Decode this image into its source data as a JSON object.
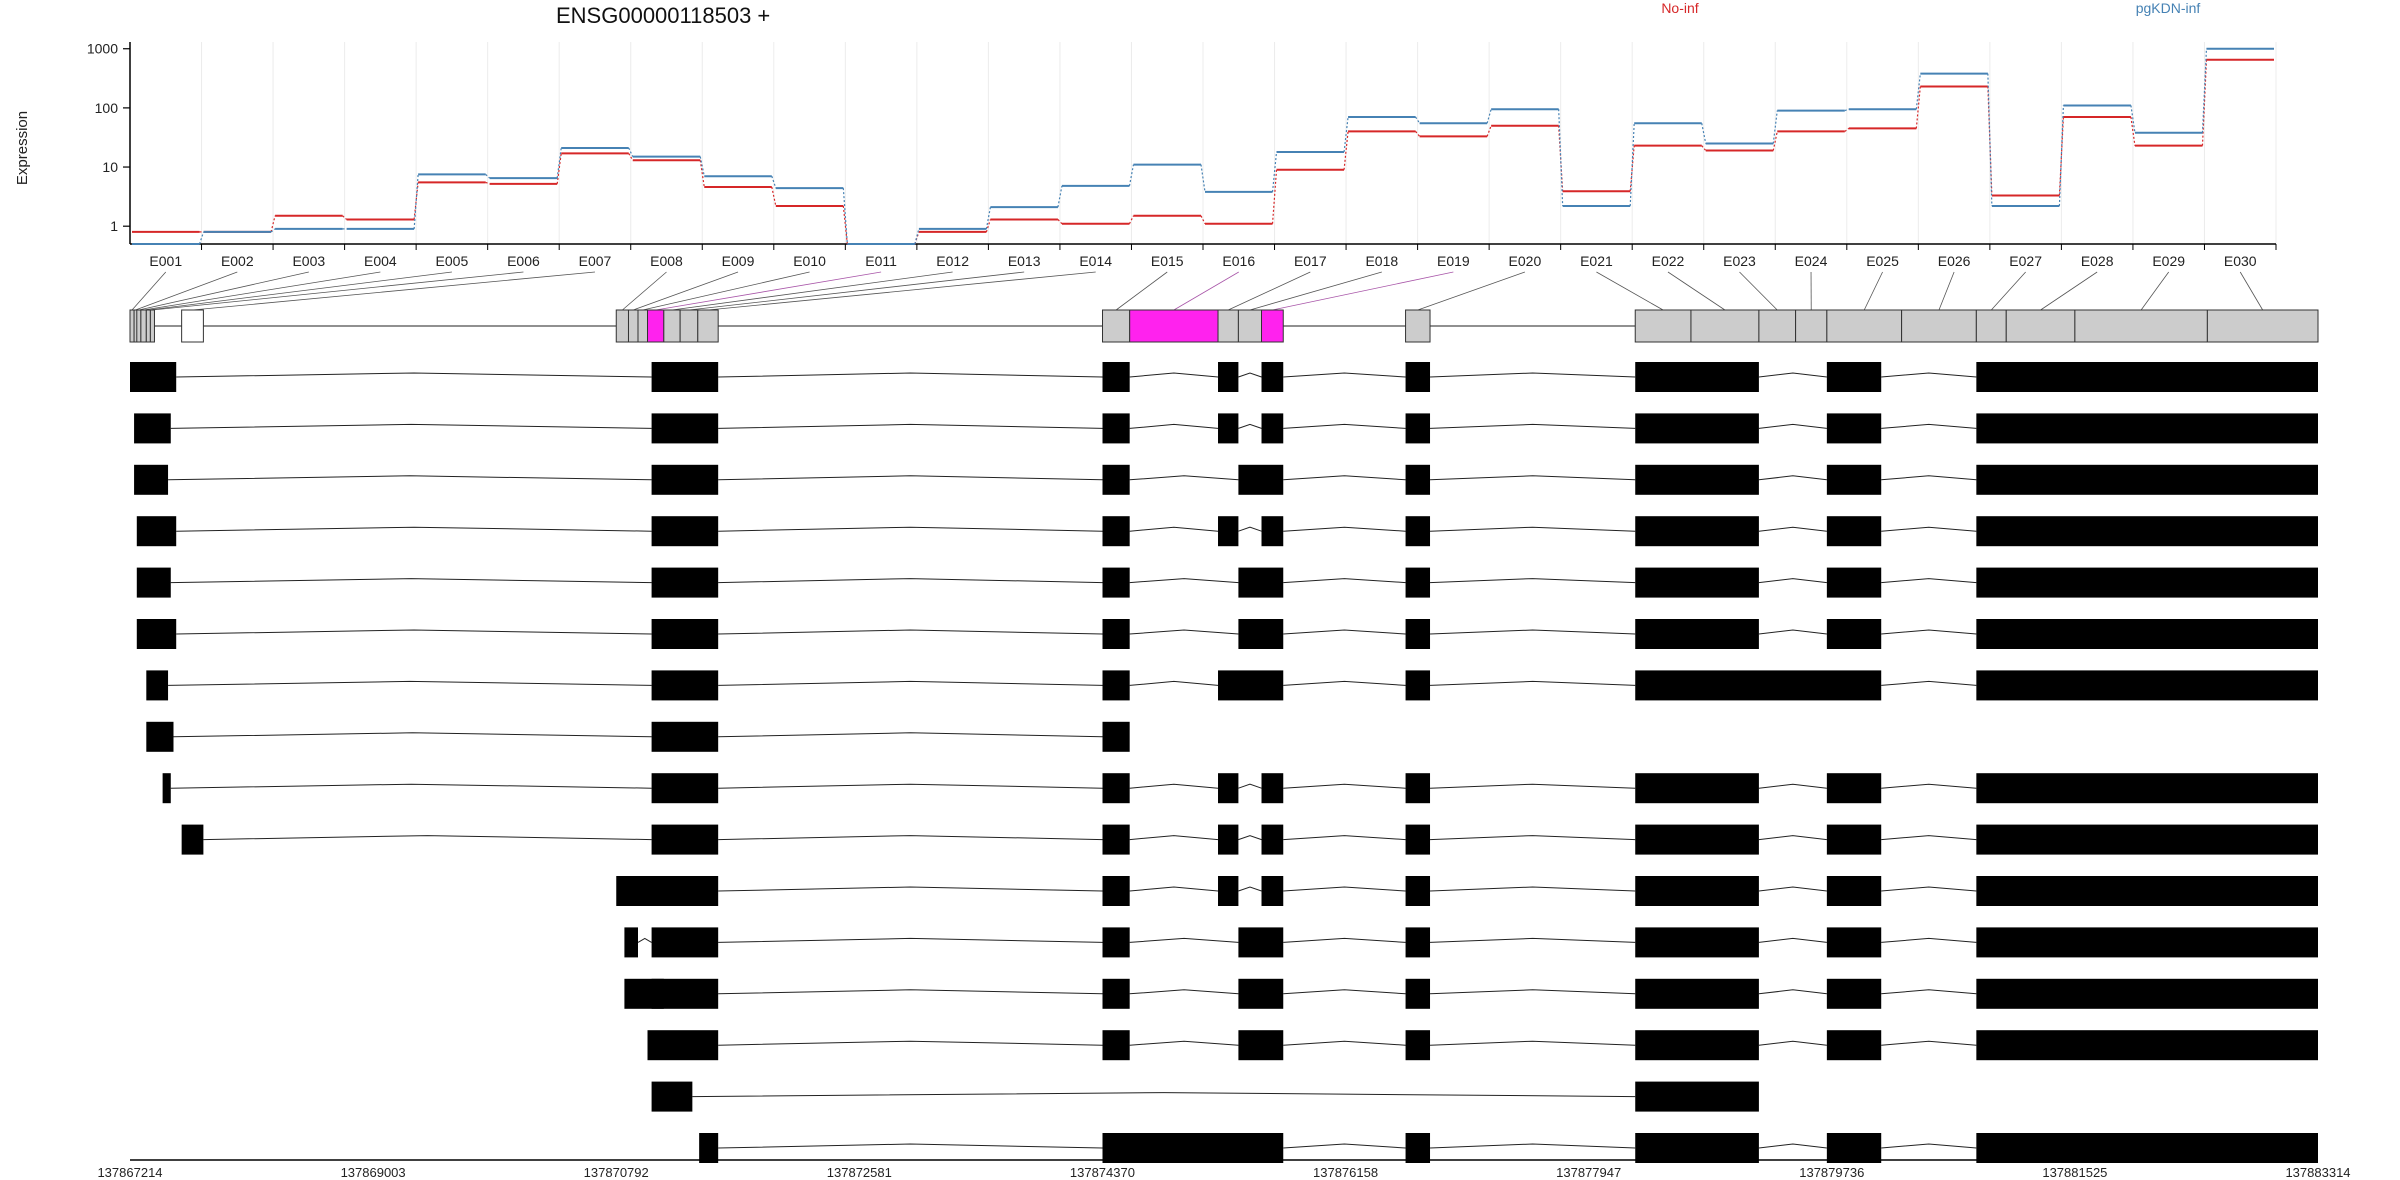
{
  "chart_data": {
    "type": "line",
    "title": "ENSG00000118503 +",
    "ylabel": "Expression",
    "y_scale": "log10",
    "ylim": [
      0.5,
      1300
    ],
    "y_ticks": [
      1,
      10,
      100,
      1000
    ],
    "y_tick_labels": [
      "1",
      "10",
      "100",
      "1000"
    ],
    "legend_position": "top",
    "grid": "vertical",
    "categories": [
      "E001",
      "E002",
      "E003",
      "E004",
      "E005",
      "E006",
      "E007",
      "E008",
      "E009",
      "E010",
      "E011",
      "E012",
      "E013",
      "E014",
      "E015",
      "E016",
      "E017",
      "E018",
      "E019",
      "E020",
      "E021",
      "E022",
      "E023",
      "E024",
      "E025",
      "E026",
      "E027",
      "E028",
      "E029",
      "E030"
    ],
    "series": [
      {
        "name": "No-inf",
        "color": "#d62728",
        "values": [
          0.8,
          0.8,
          1.5,
          1.3,
          5.5,
          5.2,
          17,
          13,
          4.6,
          2.2,
          0.5,
          0.8,
          1.3,
          1.1,
          1.5,
          1.1,
          9,
          40,
          33,
          50,
          3.9,
          23,
          19,
          40,
          45,
          230,
          3.3,
          70,
          23,
          650
        ]
      },
      {
        "name": "pgKDN-inf",
        "color": "#4682b4",
        "values": [
          0.5,
          0.8,
          0.9,
          0.9,
          7.5,
          6.5,
          21,
          15,
          7,
          4.4,
          0.5,
          0.9,
          2.1,
          4.8,
          11,
          3.8,
          18,
          70,
          55,
          95,
          2.2,
          55,
          25,
          90,
          95,
          380,
          2.2,
          110,
          38,
          1000
        ]
      }
    ],
    "gene_model": {
      "coordinate_range": [
        137867214,
        137883314
      ],
      "coordinate_ticks": [
        "137867214",
        "137869003",
        "137870792",
        "137872581",
        "137874370",
        "137876158",
        "137877947",
        "137879736",
        "137881525",
        "137883314"
      ],
      "exon_bins": [
        {
          "id": "E001",
          "start": 137867214,
          "end": 137867244,
          "fill": "#cccccc"
        },
        {
          "id": "E002",
          "start": 137867244,
          "end": 137867264,
          "fill": "#cccccc"
        },
        {
          "id": "E003",
          "start": 137867264,
          "end": 137867294,
          "fill": "#cccccc"
        },
        {
          "id": "E004",
          "start": 137867294,
          "end": 137867334,
          "fill": "#cccccc"
        },
        {
          "id": "E005",
          "start": 137867334,
          "end": 137867364,
          "fill": "#cccccc"
        },
        {
          "id": "E006",
          "start": 137867364,
          "end": 137867394,
          "fill": "#cccccc"
        },
        {
          "id": "E007",
          "start": 137867594,
          "end": 137867754,
          "fill": "#ffffff"
        },
        {
          "id": "E008",
          "start": 137870792,
          "end": 137870882,
          "fill": "#cccccc"
        },
        {
          "id": "E009",
          "start": 137870882,
          "end": 137870952,
          "fill": "#cccccc"
        },
        {
          "id": "E010",
          "start": 137870952,
          "end": 137871022,
          "fill": "#cccccc"
        },
        {
          "id": "E011",
          "start": 137871022,
          "end": 137871142,
          "fill": "#ff22ee"
        },
        {
          "id": "E012",
          "start": 137871142,
          "end": 137871262,
          "fill": "#cccccc"
        },
        {
          "id": "E013",
          "start": 137871262,
          "end": 137871392,
          "fill": "#cccccc"
        },
        {
          "id": "E014",
          "start": 137871392,
          "end": 137871542,
          "fill": "#cccccc"
        },
        {
          "id": "E015",
          "start": 137874370,
          "end": 137874570,
          "fill": "#cccccc"
        },
        {
          "id": "E016",
          "start": 137874570,
          "end": 137875220,
          "fill": "#ff22ee"
        },
        {
          "id": "E017",
          "start": 137875220,
          "end": 137875370,
          "fill": "#cccccc"
        },
        {
          "id": "E018",
          "start": 137875370,
          "end": 137875540,
          "fill": "#cccccc"
        },
        {
          "id": "E019",
          "start": 137875540,
          "end": 137875700,
          "fill": "#ff22ee"
        },
        {
          "id": "E020",
          "start": 137876600,
          "end": 137876780,
          "fill": "#cccccc"
        },
        {
          "id": "E021",
          "start": 137878290,
          "end": 137878700,
          "fill": "#cccccc"
        },
        {
          "id": "E022",
          "start": 137878700,
          "end": 137879200,
          "fill": "#cccccc"
        },
        {
          "id": "E023",
          "start": 137879200,
          "end": 137879470,
          "fill": "#cccccc"
        },
        {
          "id": "E024",
          "start": 137879470,
          "end": 137879700,
          "fill": "#cccccc"
        },
        {
          "id": "E025",
          "start": 137879700,
          "end": 137880250,
          "fill": "#cccccc"
        },
        {
          "id": "E026",
          "start": 137880250,
          "end": 137880800,
          "fill": "#cccccc"
        },
        {
          "id": "E027",
          "start": 137880800,
          "end": 137881020,
          "fill": "#cccccc"
        },
        {
          "id": "E028",
          "start": 137881020,
          "end": 137881525,
          "fill": "#cccccc"
        },
        {
          "id": "E029",
          "start": 137881525,
          "end": 137882500,
          "fill": "#cccccc"
        },
        {
          "id": "E030",
          "start": 137882500,
          "end": 137883314,
          "fill": "#cccccc"
        }
      ],
      "gene_exons": [
        [
          137867214,
          137867454
        ],
        [
          137867594,
          137867754
        ],
        [
          137870792,
          137871542
        ],
        [
          137874370,
          137875700
        ],
        [
          137876600,
          137876780
        ],
        [
          137878290,
          137880100
        ],
        [
          137880800,
          137883314
        ]
      ],
      "transcripts": [
        [
          [
            137867214,
            137867554
          ],
          [
            137871052,
            137871542
          ],
          [
            137874370,
            137874570
          ],
          [
            137875220,
            137875370
          ],
          [
            137875540,
            137875700
          ],
          [
            137876600,
            137876780
          ],
          [
            137878290,
            137879200
          ],
          [
            137879700,
            137880100
          ],
          [
            137880800,
            137883314
          ]
        ],
        [
          [
            137867244,
            137867514
          ],
          [
            137871052,
            137871542
          ],
          [
            137874370,
            137874570
          ],
          [
            137875220,
            137875370
          ],
          [
            137875540,
            137875700
          ],
          [
            137876600,
            137876780
          ],
          [
            137878290,
            137879200
          ],
          [
            137879700,
            137880100
          ],
          [
            137880800,
            137883314
          ]
        ],
        [
          [
            137867244,
            137867494
          ],
          [
            137871052,
            137871542
          ],
          [
            137874370,
            137874570
          ],
          [
            137875370,
            137875700
          ],
          [
            137876600,
            137876780
          ],
          [
            137878290,
            137879200
          ],
          [
            137879700,
            137880100
          ],
          [
            137880800,
            137883314
          ]
        ],
        [
          [
            137867264,
            137867554
          ],
          [
            137871052,
            137871542
          ],
          [
            137874370,
            137874570
          ],
          [
            137875220,
            137875370
          ],
          [
            137875540,
            137875700
          ],
          [
            137876600,
            137876780
          ],
          [
            137878290,
            137879200
          ],
          [
            137879700,
            137880100
          ],
          [
            137880800,
            137883314
          ]
        ],
        [
          [
            137867264,
            137867514
          ],
          [
            137871052,
            137871542
          ],
          [
            137874370,
            137874570
          ],
          [
            137875370,
            137875700
          ],
          [
            137876600,
            137876780
          ],
          [
            137878290,
            137879200
          ],
          [
            137879700,
            137880100
          ],
          [
            137880800,
            137883314
          ]
        ],
        [
          [
            137867264,
            137867554
          ],
          [
            137871052,
            137871542
          ],
          [
            137874370,
            137874570
          ],
          [
            137875370,
            137875700
          ],
          [
            137876600,
            137876780
          ],
          [
            137878290,
            137879200
          ],
          [
            137879700,
            137880100
          ],
          [
            137880800,
            137883314
          ]
        ],
        [
          [
            137867334,
            137867494
          ],
          [
            137871052,
            137871542
          ],
          [
            137874370,
            137874570
          ],
          [
            137875220,
            137875700
          ],
          [
            137876600,
            137876780
          ],
          [
            137878290,
            137880100
          ],
          [
            137880800,
            137883314
          ]
        ],
        [
          [
            137867334,
            137867534
          ],
          [
            137871052,
            137871542
          ],
          [
            137874370,
            137874570
          ]
        ],
        [
          [
            137867454,
            137867514
          ],
          [
            137871052,
            137871542
          ],
          [
            137874370,
            137874570
          ],
          [
            137875220,
            137875370
          ],
          [
            137875540,
            137875700
          ],
          [
            137876600,
            137876780
          ],
          [
            137878290,
            137879200
          ],
          [
            137879700,
            137880100
          ],
          [
            137880800,
            137883314
          ]
        ],
        [
          [
            137867594,
            137867754
          ],
          [
            137871052,
            137871542
          ],
          [
            137874370,
            137874570
          ],
          [
            137875220,
            137875370
          ],
          [
            137875540,
            137875700
          ],
          [
            137876600,
            137876780
          ],
          [
            137878290,
            137879200
          ],
          [
            137879700,
            137880100
          ],
          [
            137880800,
            137883314
          ]
        ],
        [
          [
            137870792,
            137871142
          ],
          [
            137871052,
            137871542
          ],
          [
            137874370,
            137874570
          ],
          [
            137875220,
            137875370
          ],
          [
            137875540,
            137875700
          ],
          [
            137876600,
            137876780
          ],
          [
            137878290,
            137879200
          ],
          [
            137879700,
            137880100
          ],
          [
            137880800,
            137883314
          ]
        ],
        [
          [
            137870852,
            137870952
          ],
          [
            137871052,
            137871542
          ],
          [
            137874370,
            137874570
          ],
          [
            137875370,
            137875700
          ],
          [
            137876600,
            137876780
          ],
          [
            137878290,
            137879200
          ],
          [
            137879700,
            137880100
          ],
          [
            137880800,
            137883314
          ]
        ],
        [
          [
            137870852,
            137871142
          ],
          [
            137871052,
            137871542
          ],
          [
            137874370,
            137874570
          ],
          [
            137875370,
            137875700
          ],
          [
            137876600,
            137876780
          ],
          [
            137878290,
            137879200
          ],
          [
            137879700,
            137880100
          ],
          [
            137880800,
            137883314
          ]
        ],
        [
          [
            137871022,
            137871542
          ],
          [
            137874370,
            137874570
          ],
          [
            137875370,
            137875700
          ],
          [
            137876600,
            137876780
          ],
          [
            137878290,
            137879200
          ],
          [
            137879700,
            137880100
          ],
          [
            137880800,
            137883314
          ]
        ],
        [
          [
            137871052,
            137871352
          ],
          [
            137878290,
            137879200
          ]
        ],
        [
          [
            137871402,
            137871542
          ],
          [
            137874370,
            137875700
          ],
          [
            137876600,
            137876780
          ],
          [
            137878290,
            137879200
          ],
          [
            137879700,
            137880100
          ],
          [
            137880800,
            137883314
          ]
        ]
      ]
    }
  }
}
